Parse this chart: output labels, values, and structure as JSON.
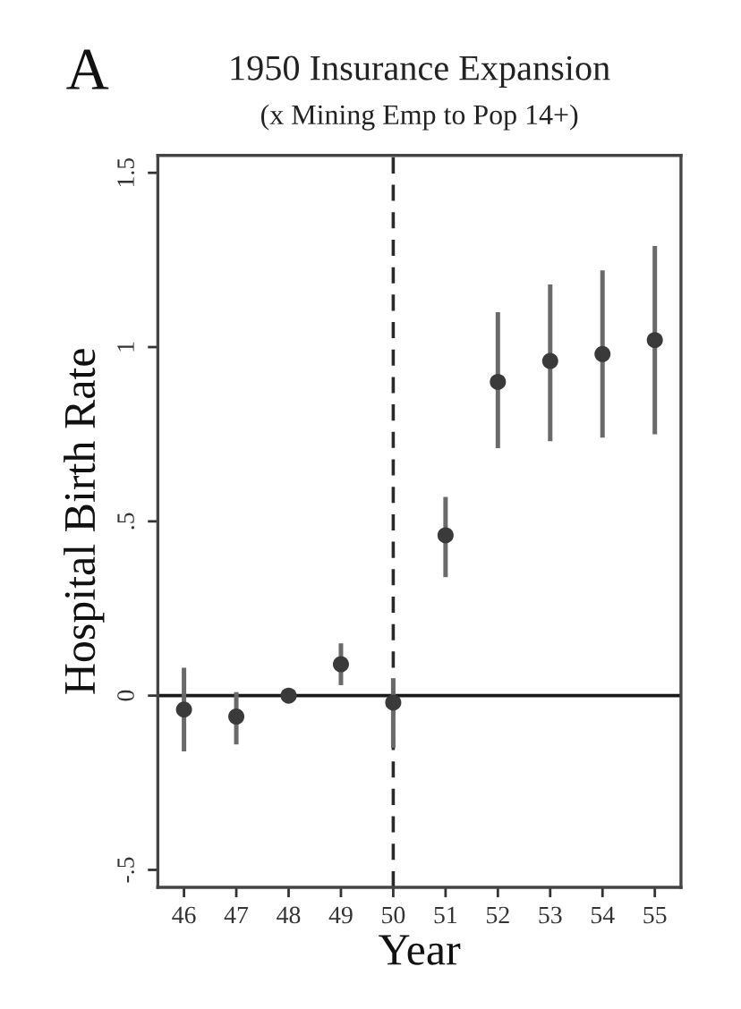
{
  "chart_data": {
    "type": "scatter",
    "title": "1950 Insurance Expansion",
    "subtitle": "(x Mining Emp to Pop 14+)",
    "xlabel": "Year",
    "ylabel": "Hospital Birth Rate",
    "annotations": [
      "A"
    ],
    "x": [
      46,
      47,
      48,
      49,
      50,
      51,
      52,
      53,
      54,
      55
    ],
    "values": [
      -0.04,
      -0.06,
      0.0,
      0.09,
      -0.02,
      0.46,
      0.9,
      0.96,
      0.98,
      1.02
    ],
    "errors": [
      [
        -0.16,
        0.08
      ],
      [
        -0.14,
        0.01
      ],
      null,
      [
        0.03,
        0.15
      ],
      [
        -0.15,
        0.05
      ],
      [
        0.34,
        0.57
      ],
      [
        0.71,
        1.1
      ],
      [
        0.73,
        1.18
      ],
      [
        0.74,
        1.22
      ],
      [
        0.75,
        1.29
      ]
    ],
    "color": "#3a3a3a",
    "marker": "circle",
    "xlim": [
      45.5,
      55.5
    ],
    "xticks": [
      46,
      47,
      48,
      49,
      50,
      51,
      52,
      53,
      54,
      55
    ],
    "ylim": [
      -0.55,
      1.55
    ],
    "yticks": [
      {
        "value": -0.5,
        "label": "-.5"
      },
      0,
      {
        "value": 0.5,
        "label": ".5"
      },
      1,
      {
        "value": 1.5,
        "label": "1.5"
      }
    ],
    "ref_lines": [
      {
        "axis": "y",
        "value": 0,
        "color": "#1a1a1a",
        "line_style": "solid"
      },
      {
        "axis": "x",
        "value": 50,
        "color": "#2a2a2a",
        "line_style": "dashed"
      }
    ]
  }
}
